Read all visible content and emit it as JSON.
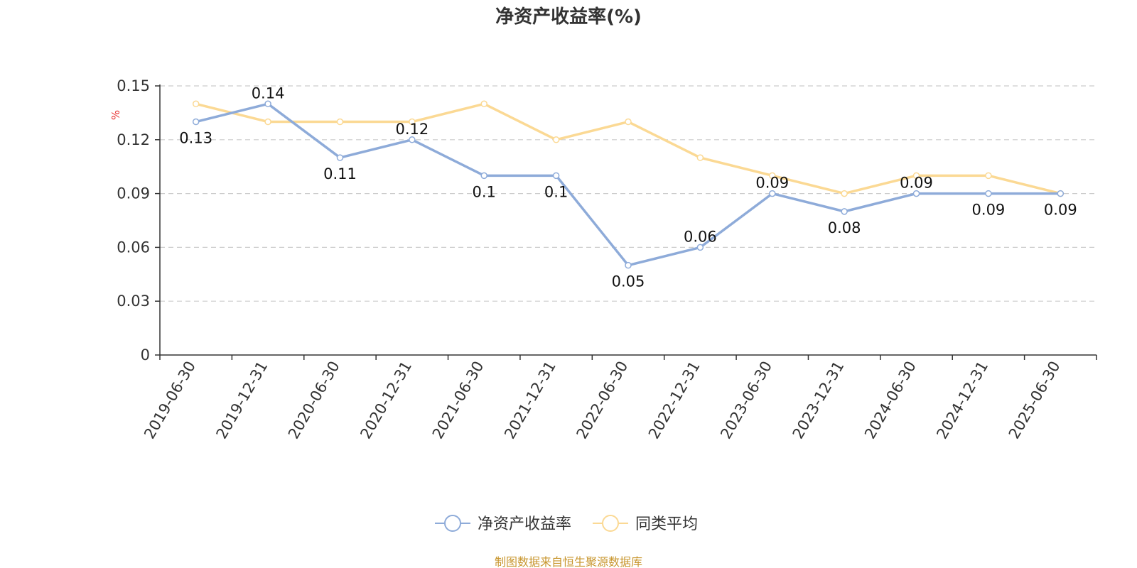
{
  "chart_data": {
    "type": "line",
    "title": "净资产收益率(%)",
    "ylabel": "%",
    "xlabel": "",
    "categories": [
      "2019-06-30",
      "2019-12-31",
      "2020-06-30",
      "2020-12-31",
      "2021-06-30",
      "2021-12-31",
      "2022-06-30",
      "2022-12-31",
      "2023-06-30",
      "2023-12-31",
      "2024-06-30",
      "2024-12-31",
      "2025-06-30"
    ],
    "ylim": [
      0,
      0.15
    ],
    "yticks": [
      "0",
      "0.03",
      "0.06",
      "0.09",
      "0.12",
      "0.15"
    ],
    "grid": true,
    "legend_position": "bottom-center",
    "series": [
      {
        "name": "净资产收益率",
        "color": "#8eabd9",
        "values": [
          0.13,
          0.14,
          0.11,
          0.12,
          0.1,
          0.1,
          0.05,
          0.06,
          0.09,
          0.08,
          0.09,
          0.09,
          0.09
        ],
        "labels": [
          "0.13",
          "0.14",
          "0.11",
          "0.12",
          "0.1",
          "0.1",
          "0.05",
          "0.06",
          "0.09",
          "0.08",
          "0.09",
          "0.09",
          "0.09"
        ]
      },
      {
        "name": "同类平均",
        "color": "#fbd994",
        "values": [
          0.14,
          0.13,
          0.13,
          0.13,
          0.14,
          0.12,
          0.13,
          0.11,
          0.1,
          0.09,
          0.1,
          0.1,
          0.09
        ]
      }
    ]
  },
  "colors": {
    "unit": "#e83030",
    "source": "#c8962e",
    "grid": "#cccccc",
    "axis": "#333333"
  },
  "source_text": "制图数据来自恒生聚源数据库"
}
